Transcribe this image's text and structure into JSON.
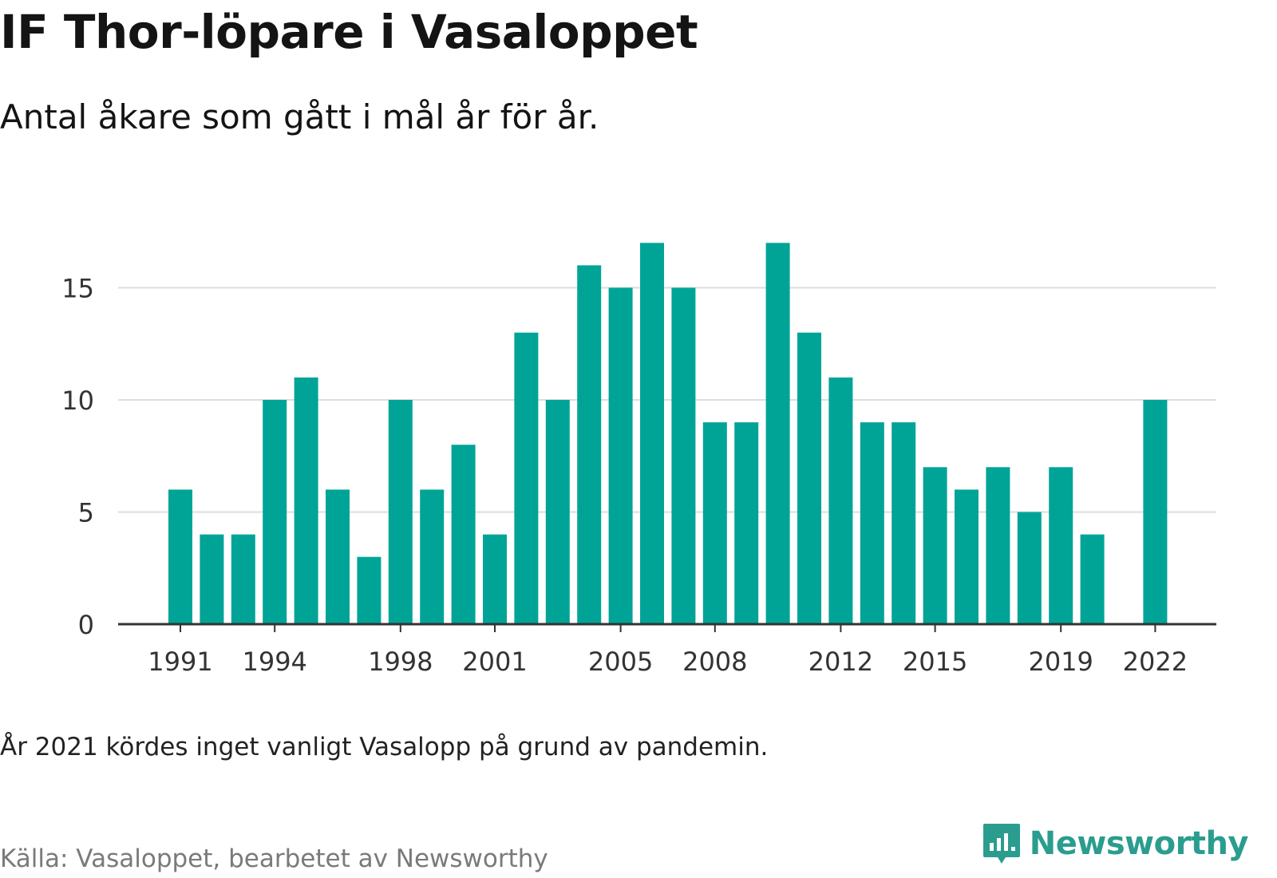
{
  "title": "IF Thor-löpare i Vasaloppet",
  "subtitle": "Antal åkare som gått i mål år för år.",
  "note": "År 2021 kördes inget vanligt Vasalopp på grund av pandemin.",
  "source": "Källa: Vasaloppet, bearbetet av Newsworthy",
  "brand": {
    "name": "Newsworthy",
    "color": "#2a9d8f",
    "icon": "chart-speech-bubble-icon"
  },
  "colors": {
    "bar": "#00a497",
    "grid": "#dddddd",
    "axis": "#333333"
  },
  "chart_data": {
    "type": "bar",
    "categories": [
      "1991",
      "1992",
      "1993",
      "1994",
      "1995",
      "1996",
      "1997",
      "1998",
      "1999",
      "2000",
      "2001",
      "2002",
      "2003",
      "2004",
      "2005",
      "2006",
      "2007",
      "2008",
      "2009",
      "2010",
      "2011",
      "2012",
      "2013",
      "2014",
      "2015",
      "2016",
      "2017",
      "2018",
      "2019",
      "2020",
      "2021",
      "2022"
    ],
    "values": [
      6,
      4,
      4,
      10,
      11,
      6,
      3,
      10,
      6,
      8,
      4,
      13,
      10,
      16,
      15,
      17,
      15,
      9,
      9,
      17,
      13,
      11,
      9,
      9,
      7,
      6,
      7,
      5,
      7,
      4,
      null,
      10
    ],
    "x_tick_labels": [
      "1991",
      "1994",
      "1998",
      "2001",
      "2005",
      "2008",
      "2012",
      "2015",
      "2019",
      "2022"
    ],
    "y_ticks": [
      0,
      5,
      10,
      15
    ],
    "ylim": [
      0,
      17.5
    ],
    "grid": true,
    "xlabel": "",
    "ylabel": ""
  }
}
